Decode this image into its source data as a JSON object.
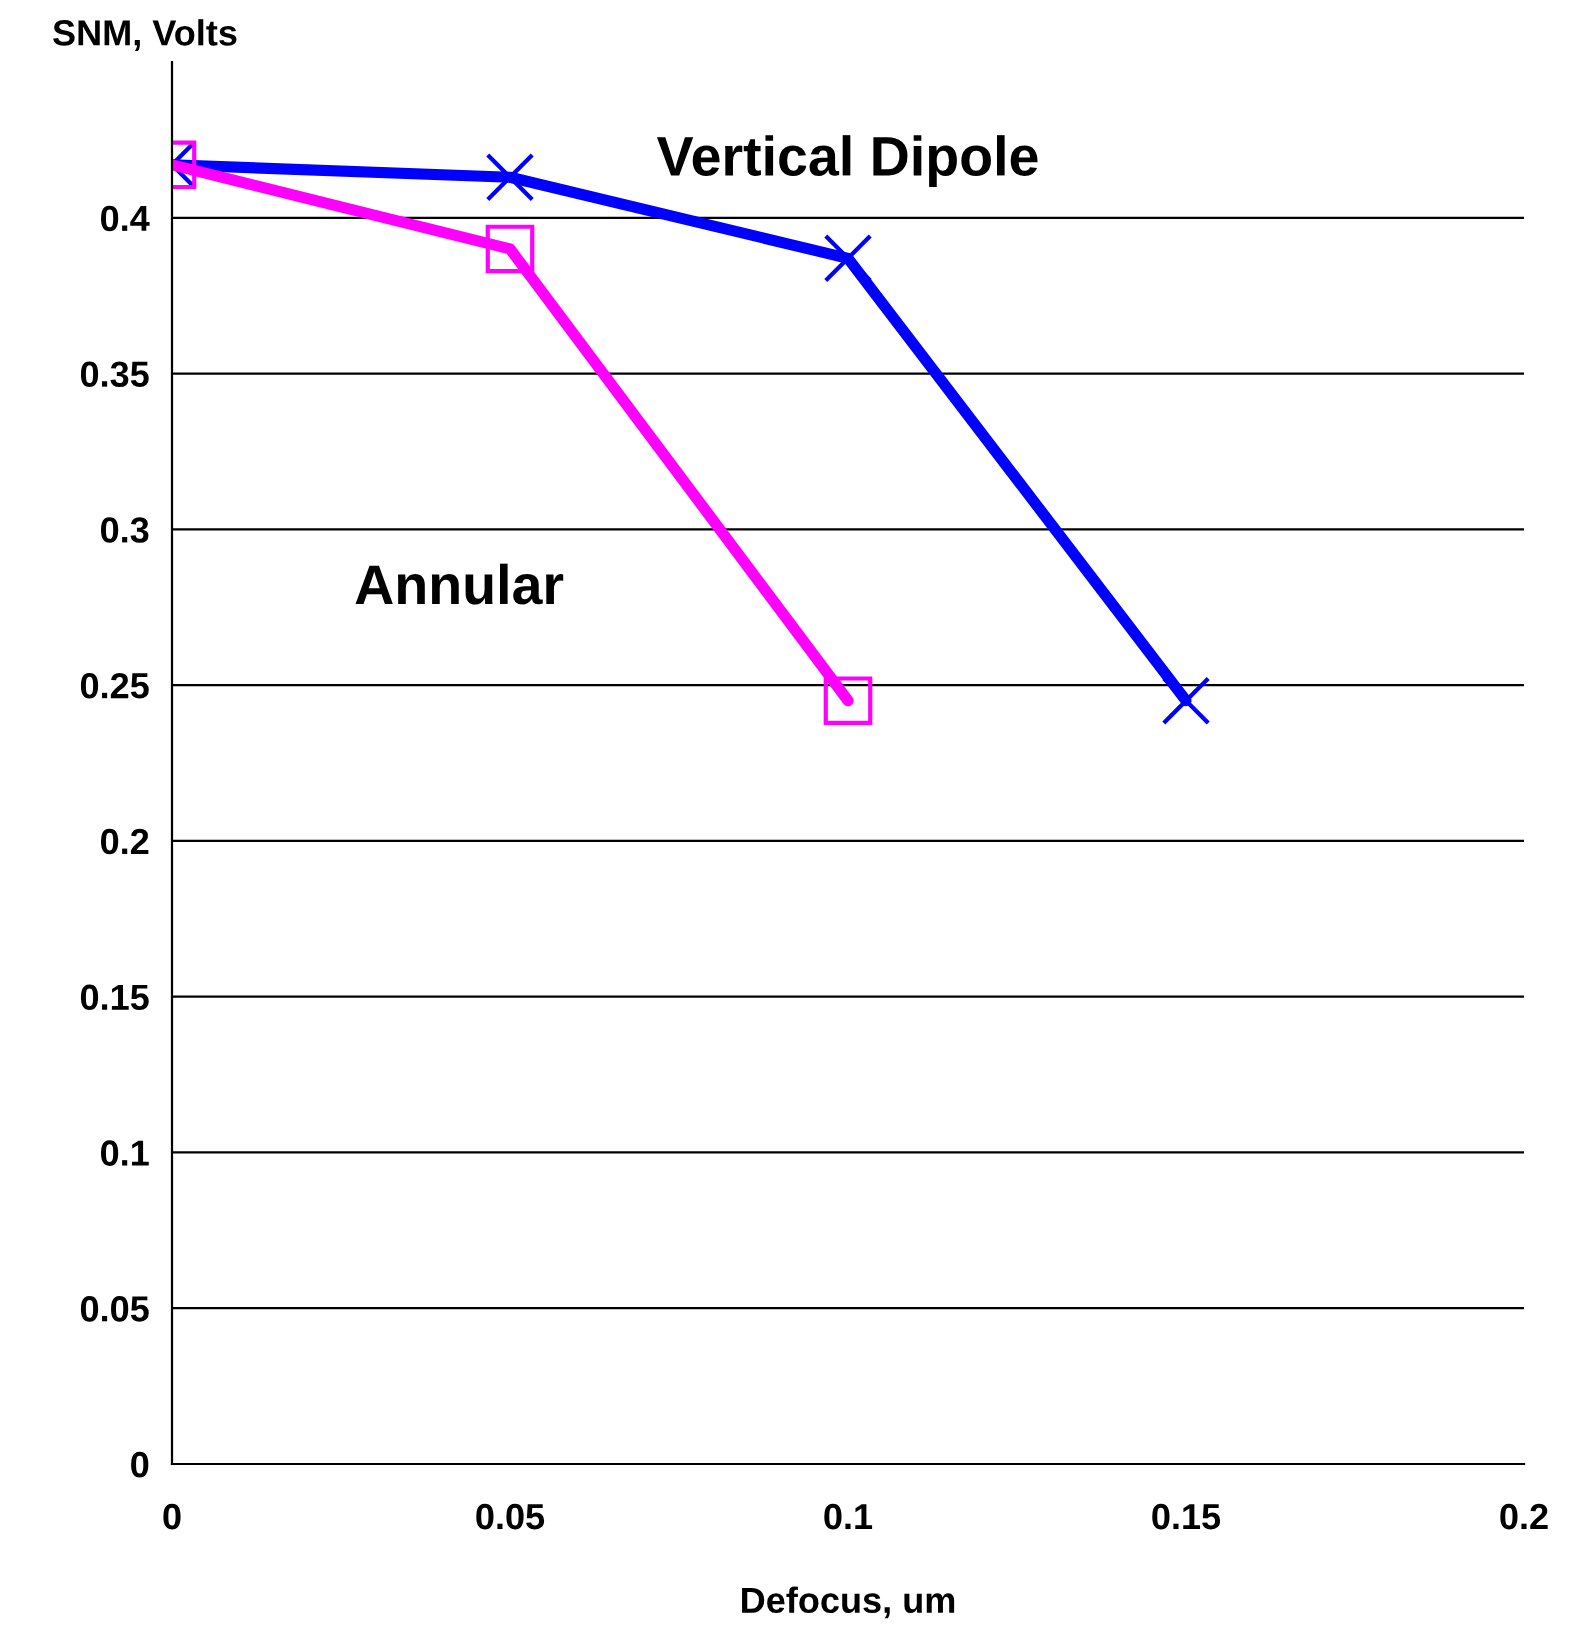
{
  "chart_data": {
    "type": "line",
    "xlabel": "Defocus, um",
    "ylabel": "SNM, Volts",
    "xlim": [
      0,
      0.2
    ],
    "xticks": [
      0,
      0.05,
      0.1,
      0.15,
      0.2
    ],
    "ylim": [
      0,
      0.45
    ],
    "yticks": [
      0,
      0.05,
      0.1,
      0.15,
      0.2,
      0.25,
      0.3,
      0.35,
      0.4
    ],
    "grid": "y",
    "legend": false,
    "line_style": "solid",
    "series": [
      {
        "name": "Vertical Dipole",
        "color": "#0000ff",
        "marker": "cross",
        "x": [
          0,
          0.05,
          0.1,
          0.15
        ],
        "values": [
          0.417,
          0.413,
          0.387,
          0.245
        ]
      },
      {
        "name": "Annular",
        "color": "#ff00ff",
        "marker": "square",
        "x": [
          0,
          0.05,
          0.1
        ],
        "values": [
          0.417,
          0.39,
          0.245
        ]
      }
    ]
  }
}
